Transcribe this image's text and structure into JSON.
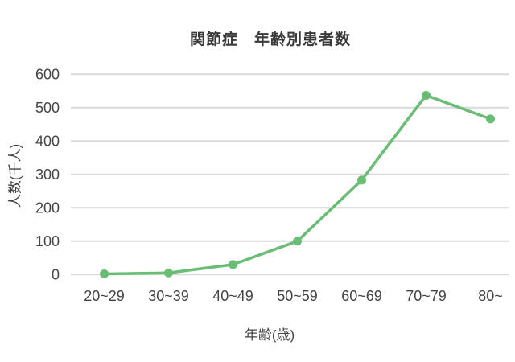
{
  "chart_data": {
    "type": "line",
    "title": "関節症　年齢別患者数",
    "xlabel": "年齢(歳)",
    "ylabel": "人数(千人)",
    "categories": [
      "20~29",
      "30~39",
      "40~49",
      "50~59",
      "60~69",
      "70~79",
      "80~"
    ],
    "series": [
      {
        "name": "患者数",
        "values": [
          2,
          5,
          30,
          100,
          283,
          537,
          466
        ]
      }
    ],
    "ylim": [
      0,
      600
    ],
    "y_ticks": [
      0,
      100,
      200,
      300,
      400,
      500,
      600
    ],
    "grid": "horizontal",
    "legend": "none",
    "line_color": "#6abd74",
    "marker": "circle",
    "grid_color": "#d9d9d9",
    "tick_text_color": "#444444"
  }
}
